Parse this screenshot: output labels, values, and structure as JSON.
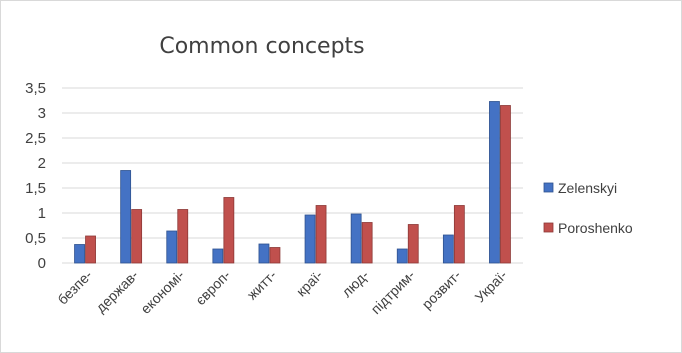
{
  "chart_data": {
    "type": "bar",
    "title": "Common concepts",
    "xlabel": "",
    "ylabel": "",
    "categories": [
      "безпе-",
      "держав-",
      "економі-",
      "європ-",
      "житт-",
      "краї-",
      "люд-",
      "підтрим-",
      "розвит-",
      "Украї-"
    ],
    "ylim": [
      0,
      3.5
    ],
    "yticks": [
      "0",
      "0,5",
      "1",
      "1,5",
      "2",
      "2,5",
      "3",
      "3,5"
    ],
    "grid": true,
    "legend_position": "right",
    "series": [
      {
        "name": "Zelenskyi",
        "color": "#4472c4",
        "values": [
          0.37,
          1.85,
          0.64,
          0.28,
          0.38,
          0.96,
          0.98,
          0.28,
          0.56,
          3.23
        ]
      },
      {
        "name": "Poroshenko",
        "color": "#c0504d",
        "values": [
          0.54,
          1.07,
          1.07,
          1.31,
          0.31,
          1.15,
          0.81,
          0.77,
          1.15,
          3.15
        ]
      }
    ]
  }
}
